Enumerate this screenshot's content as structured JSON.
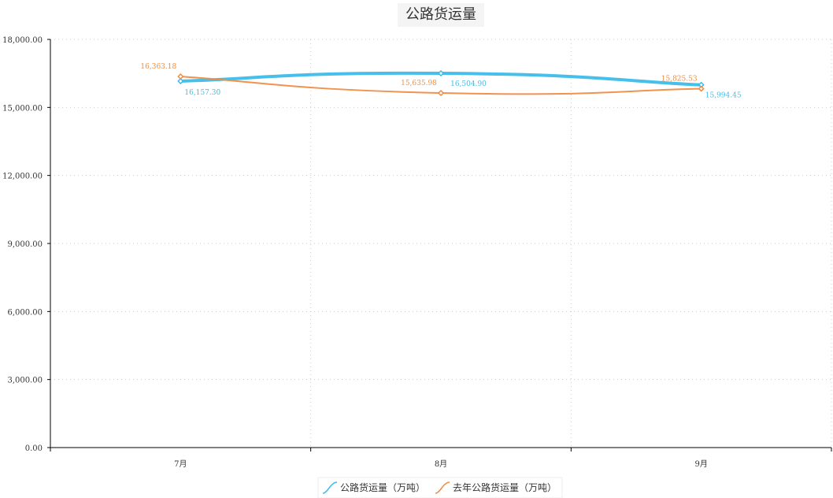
{
  "chart_data": {
    "type": "line",
    "title": "公路货运量",
    "categories": [
      "7月",
      "8月",
      "9月"
    ],
    "series": [
      {
        "name": "公路货运量（万吨）",
        "values": [
          16157.3,
          16504.9,
          15994.45
        ],
        "labels": [
          "16,157.30",
          "16,504.90",
          "15,994.45"
        ],
        "color": "#3cbde9"
      },
      {
        "name": "去年公路货运量（万吨）",
        "values": [
          16363.18,
          15635.98,
          15825.53
        ],
        "labels": [
          "16,363.18",
          "15,635.98",
          "15,825.53"
        ],
        "color": "#f08c43"
      }
    ],
    "ylim": [
      0,
      18000
    ],
    "yticks": [
      0,
      3000,
      6000,
      9000,
      12000,
      15000,
      18000
    ],
    "ytick_labels": [
      "0.00",
      "3,000.00",
      "6,000.00",
      "9,000.00",
      "12,000.00",
      "15,000.00",
      "18,000.00"
    ],
    "grid": true,
    "legend": "bottom-center",
    "smooth": true
  },
  "colors": {
    "axis": "#000000",
    "grid": "#cccccc",
    "title_bg": "#f4f4f4"
  }
}
